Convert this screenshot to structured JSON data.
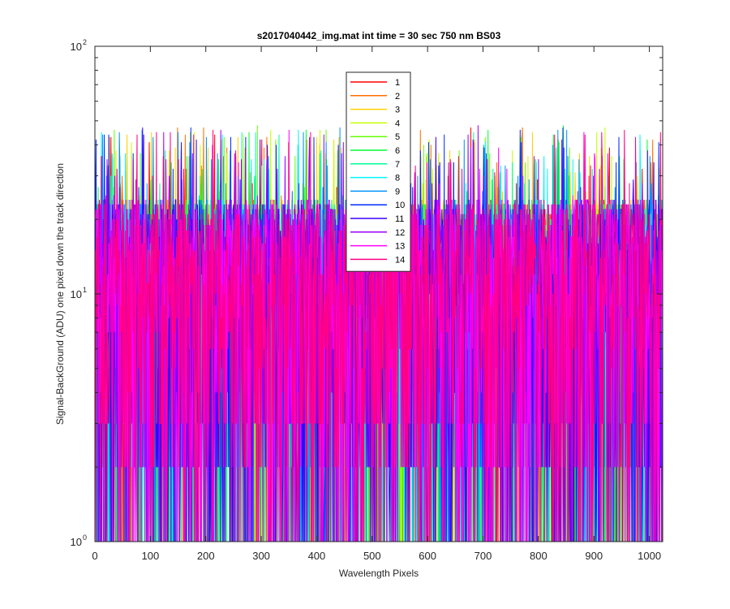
{
  "chart_data": {
    "type": "line",
    "title": "s2017040442_img.mat int time = 30 sec  750 nm BS03",
    "xlabel": "Wavelength Pixels",
    "ylabel": "Signal-BackGround (ADU) one pixel down the track direction",
    "xlim": [
      0,
      1024
    ],
    "ylim": [
      1,
      100
    ],
    "yscale": "log",
    "x_ticks": [
      "0",
      "100",
      "200",
      "300",
      "400",
      "500",
      "600",
      "700",
      "800",
      "900",
      "1000"
    ],
    "x_tick_values": [
      0,
      100,
      200,
      300,
      400,
      500,
      600,
      700,
      800,
      900,
      1000
    ],
    "y_ticks": [
      {
        "value": 1,
        "base": "10",
        "exp": "0"
      },
      {
        "value": 10,
        "base": "10",
        "exp": "1"
      },
      {
        "value": 100,
        "base": "10",
        "exp": "2"
      }
    ],
    "grid": false,
    "legend_position": "top-center",
    "point_count": 1024,
    "value_range": [
      1,
      48
    ],
    "series": [
      {
        "name": "1",
        "color": "#ff0000"
      },
      {
        "name": "2",
        "color": "#ff6e00"
      },
      {
        "name": "3",
        "color": "#ffd200"
      },
      {
        "name": "4",
        "color": "#c8ff00"
      },
      {
        "name": "5",
        "color": "#64ff00"
      },
      {
        "name": "6",
        "color": "#00ff32"
      },
      {
        "name": "7",
        "color": "#00ff96"
      },
      {
        "name": "8",
        "color": "#00f5ff"
      },
      {
        "name": "9",
        "color": "#0091ff"
      },
      {
        "name": "10",
        "color": "#002dff"
      },
      {
        "name": "11",
        "color": "#3700ff"
      },
      {
        "name": "12",
        "color": "#9b00ff"
      },
      {
        "name": "13",
        "color": "#ff00ff"
      },
      {
        "name": "14",
        "color": "#ff0082"
      }
    ]
  }
}
